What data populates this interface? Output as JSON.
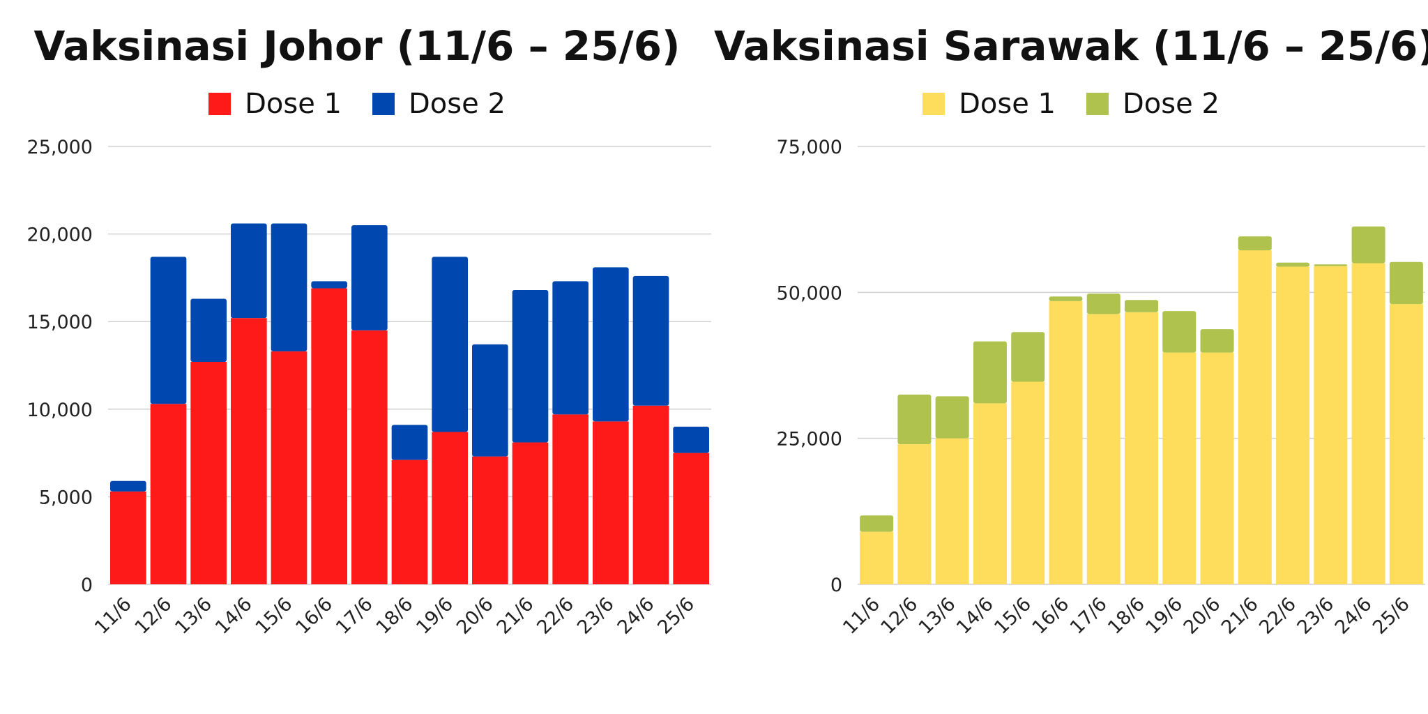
{
  "chart_data": [
    {
      "type": "bar",
      "stacked": true,
      "title": "Vaksinasi Johor (11/6 – 25/6)",
      "categories": [
        "11/6",
        "12/6",
        "13/6",
        "14/6",
        "15/6",
        "16/6",
        "17/6",
        "18/6",
        "19/6",
        "20/6",
        "21/6",
        "22/6",
        "23/6",
        "24/6",
        "25/6"
      ],
      "series": [
        {
          "name": "Dose 1",
          "color": "#ff1a1a",
          "values": [
            5300,
            10300,
            12700,
            15200,
            13300,
            16900,
            14500,
            7100,
            8700,
            7300,
            8100,
            9700,
            9300,
            10200,
            7500
          ]
        },
        {
          "name": "Dose 2",
          "color": "#0048b0",
          "values": [
            600,
            8400,
            3600,
            5400,
            7300,
            400,
            6000,
            2000,
            10000,
            6400,
            8700,
            7600,
            8800,
            7400,
            1500
          ]
        }
      ],
      "ylim": [
        0,
        25000
      ],
      "yticks": [
        0,
        5000,
        10000,
        15000,
        20000,
        25000
      ],
      "ytick_labels": [
        "0",
        "5,000",
        "10,000",
        "15,000",
        "20,000",
        "25,000"
      ],
      "grid": true,
      "legend_position": "top-center"
    },
    {
      "type": "bar",
      "stacked": true,
      "title": "Vaksinasi Sarawak (11/6 – 25/6)",
      "categories": [
        "11/6",
        "12/6",
        "13/6",
        "14/6",
        "15/6",
        "16/6",
        "17/6",
        "18/6",
        "19/6",
        "20/6",
        "21/6",
        "22/6",
        "23/6",
        "24/6",
        "25/6"
      ],
      "series": [
        {
          "name": "Dose 1",
          "color": "#ffdd5c",
          "values": [
            9000,
            24000,
            25000,
            31000,
            34700,
            48500,
            46300,
            46600,
            39700,
            39700,
            57200,
            54400,
            54500,
            55000,
            48000
          ]
        },
        {
          "name": "Dose 2",
          "color": "#aec24d",
          "values": [
            2800,
            8500,
            7200,
            10600,
            8500,
            800,
            3500,
            2100,
            7100,
            4000,
            2400,
            700,
            300,
            6300,
            7200
          ]
        }
      ],
      "ylim": [
        0,
        75000
      ],
      "yticks": [
        0,
        25000,
        50000,
        75000
      ],
      "ytick_labels": [
        "0",
        "25,000",
        "50,000",
        "75,000"
      ],
      "grid": true,
      "legend_position": "top-center"
    }
  ]
}
